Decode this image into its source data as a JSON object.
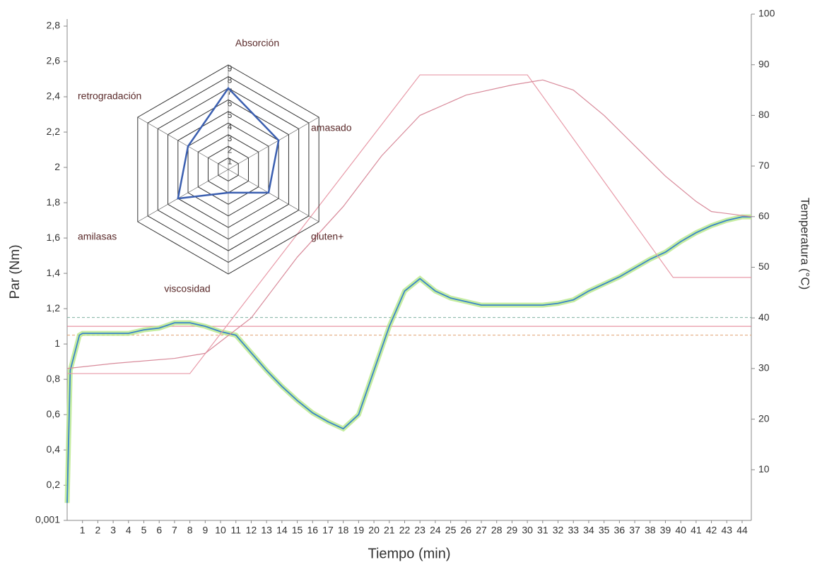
{
  "chart_data": [
    {
      "type": "line",
      "x_label": "Tiempo (min)",
      "y_label": "Par (Nm)",
      "y2_label": "Temperatura (°C)",
      "xlim": [
        0,
        44.6
      ],
      "xticks": [
        1,
        2,
        3,
        4,
        5,
        6,
        7,
        8,
        9,
        10,
        11,
        12,
        13,
        14,
        15,
        16,
        17,
        18,
        19,
        20,
        21,
        22,
        23,
        24,
        25,
        26,
        27,
        28,
        29,
        30,
        31,
        32,
        33,
        34,
        35,
        36,
        37,
        38,
        39,
        40,
        41,
        42,
        43,
        44
      ],
      "ylim": [
        0.001,
        2.8
      ],
      "yticks": [
        {
          "value": 0.001,
          "label": "0,001"
        },
        {
          "value": 0.2,
          "label": "0,2"
        },
        {
          "value": 0.4,
          "label": "0,4"
        },
        {
          "value": 0.6,
          "label": "0,6"
        },
        {
          "value": 0.8,
          "label": "0,8"
        },
        1,
        {
          "value": 1.2,
          "label": "1,2"
        },
        {
          "value": 1.4,
          "label": "1,4"
        },
        {
          "value": 1.6,
          "label": "1,6"
        },
        {
          "value": 1.8,
          "label": "1,8"
        },
        2,
        {
          "value": 2.2,
          "label": "2,2"
        },
        {
          "value": 2.4,
          "label": "2,4"
        },
        {
          "value": 2.6,
          "label": "2,6"
        },
        {
          "value": 2.8,
          "label": "2,8"
        }
      ],
      "y2lim": [
        0,
        100
      ],
      "y2ticks": [
        10,
        20,
        30,
        40,
        50,
        60,
        70,
        80,
        90,
        100
      ],
      "hlines": [
        {
          "value": 1.1,
          "color": "#e07a8c",
          "style": "solid"
        },
        {
          "value": 1.15,
          "color": "#7fb0a0",
          "style": "dashed"
        },
        {
          "value": 1.05,
          "color": "#e0a070",
          "style": "dashed"
        }
      ],
      "series": [
        {
          "color": "#3a86c8",
          "axis": "y",
          "x": [
            0,
            0.2,
            0.8,
            1,
            2,
            3,
            4,
            5,
            6,
            7,
            8,
            9,
            10,
            11,
            12,
            13,
            14,
            15,
            16,
            17,
            18,
            19,
            20,
            21,
            22,
            23,
            24,
            25,
            26,
            27,
            28,
            29,
            30,
            31,
            32,
            33,
            34,
            35,
            36,
            37,
            38,
            39,
            40,
            41,
            42,
            43,
            44,
            44.6
          ],
          "values": [
            0.1,
            0.85,
            1.05,
            1.06,
            1.06,
            1.06,
            1.06,
            1.08,
            1.09,
            1.12,
            1.12,
            1.1,
            1.07,
            1.05,
            0.95,
            0.85,
            0.76,
            0.68,
            0.61,
            0.56,
            0.52,
            0.6,
            0.85,
            1.1,
            1.3,
            1.37,
            1.3,
            1.26,
            1.24,
            1.22,
            1.22,
            1.22,
            1.22,
            1.22,
            1.23,
            1.25,
            1.3,
            1.34,
            1.38,
            1.43,
            1.48,
            1.52,
            1.58,
            1.63,
            1.67,
            1.7,
            1.72,
            1.72
          ]
        },
        {
          "color": "#e89aa8",
          "axis": "y2",
          "x": [
            0,
            8,
            23,
            30,
            39.5,
            44.6
          ],
          "values": [
            29,
            29,
            88,
            88,
            48,
            48
          ]
        },
        {
          "color": "#d88a9a",
          "axis": "y2",
          "x": [
            0,
            3,
            7,
            9,
            12,
            15,
            18,
            20.5,
            23,
            26,
            29,
            31,
            33,
            35,
            37,
            39,
            41,
            42,
            44.6
          ],
          "values": [
            30,
            31,
            32,
            33,
            40,
            52,
            62,
            72,
            80,
            84,
            86,
            87,
            85,
            80,
            74,
            68,
            63,
            61,
            60
          ]
        }
      ]
    },
    {
      "type": "radar",
      "categories": [
        "Absorción",
        "amasado",
        "gluten+",
        "viscosidad",
        "amilasas",
        "retrogradación"
      ],
      "values": [
        7,
        5,
        4,
        2,
        5,
        4
      ],
      "color": "#3b5fb0",
      "rlim": [
        0,
        9
      ],
      "rticks": [
        1,
        2,
        3,
        4,
        5,
        6,
        7,
        8,
        9
      ]
    }
  ]
}
